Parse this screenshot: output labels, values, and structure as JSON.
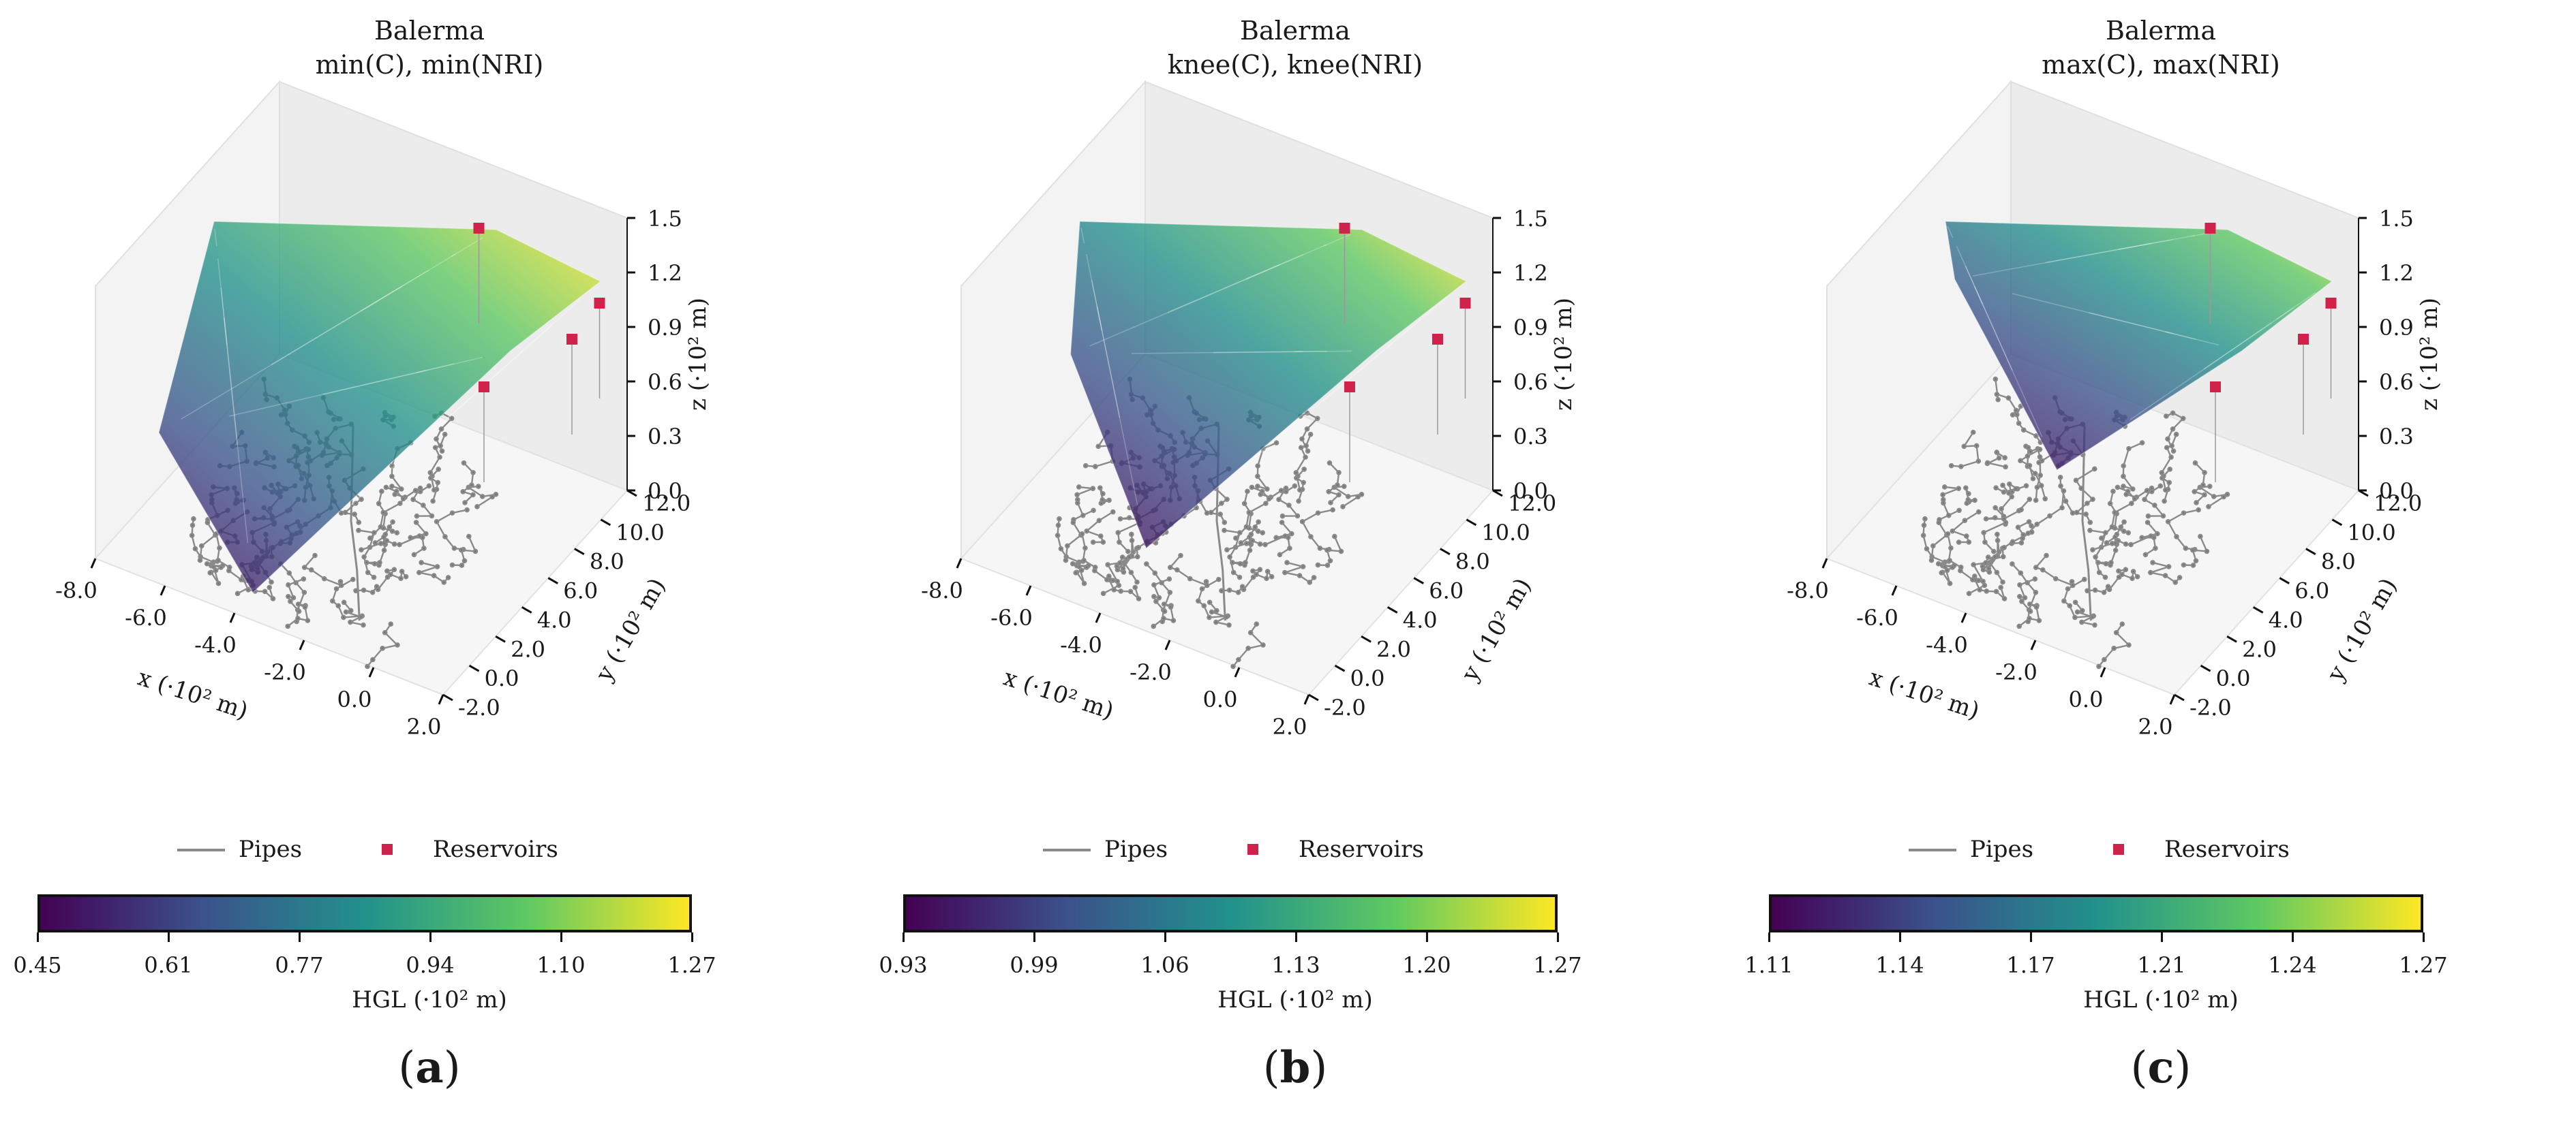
{
  "chart_data": [
    {
      "type": "surface3d",
      "title": "Balerma",
      "subtitle": "min(C), min(NRI)",
      "xlabel": "x (·10² m)",
      "ylabel": "y (·10² m)",
      "zlabel": "z (·10² m)",
      "x_ticks": [
        "-8.0",
        "-6.0",
        "-4.0",
        "-2.0",
        "0.0",
        "2.0"
      ],
      "y_ticks": [
        "-2.0",
        "0.0",
        "2.0",
        "4.0",
        "6.0",
        "8.0",
        "10.0",
        "12.0"
      ],
      "z_ticks": [
        "0.0",
        "0.3",
        "0.6",
        "0.9",
        "1.2",
        "1.5"
      ],
      "legend": [
        "Pipes",
        "Reservoirs"
      ],
      "colorbar": {
        "label": "HGL (·10² m)",
        "ticks": [
          "0.45",
          "0.61",
          "0.77",
          "0.94",
          "1.10",
          "1.27"
        ],
        "range": [
          0.45,
          1.27
        ]
      },
      "sublabel": "a"
    },
    {
      "type": "surface3d",
      "title": "Balerma",
      "subtitle": "knee(C), knee(NRI)",
      "xlabel": "x (·10² m)",
      "ylabel": "y (·10² m)",
      "zlabel": "z (·10² m)",
      "x_ticks": [
        "-8.0",
        "-6.0",
        "-4.0",
        "-2.0",
        "0.0",
        "2.0"
      ],
      "y_ticks": [
        "-2.0",
        "0.0",
        "2.0",
        "4.0",
        "6.0",
        "8.0",
        "10.0",
        "12.0"
      ],
      "z_ticks": [
        "0.0",
        "0.3",
        "0.6",
        "0.9",
        "1.2",
        "1.5"
      ],
      "legend": [
        "Pipes",
        "Reservoirs"
      ],
      "colorbar": {
        "label": "HGL (·10² m)",
        "ticks": [
          "0.93",
          "0.99",
          "1.06",
          "1.13",
          "1.20",
          "1.27"
        ],
        "range": [
          0.93,
          1.27
        ]
      },
      "sublabel": "b"
    },
    {
      "type": "surface3d",
      "title": "Balerma",
      "subtitle": "max(C), max(NRI)",
      "xlabel": "x (·10² m)",
      "ylabel": "y (·10² m)",
      "zlabel": "z (·10² m)",
      "x_ticks": [
        "-8.0",
        "-6.0",
        "-4.0",
        "-2.0",
        "0.0",
        "2.0"
      ],
      "y_ticks": [
        "-2.0",
        "0.0",
        "2.0",
        "4.0",
        "6.0",
        "8.0",
        "10.0",
        "12.0"
      ],
      "z_ticks": [
        "0.0",
        "0.3",
        "0.6",
        "0.9",
        "1.2",
        "1.5"
      ],
      "legend": [
        "Pipes",
        "Reservoirs"
      ],
      "colorbar": {
        "label": "HGL (·10² m)",
        "ticks": [
          "1.11",
          "1.14",
          "1.17",
          "1.21",
          "1.24",
          "1.27"
        ],
        "range": [
          1.11,
          1.27
        ]
      },
      "sublabel": "c"
    }
  ],
  "colors": {
    "colormap": [
      "#440154",
      "#3b528b",
      "#21918c",
      "#5ec962",
      "#fde725"
    ],
    "reservoir": "#d0224b",
    "pipes": "#8a8a8a",
    "pane": "#efefef"
  }
}
